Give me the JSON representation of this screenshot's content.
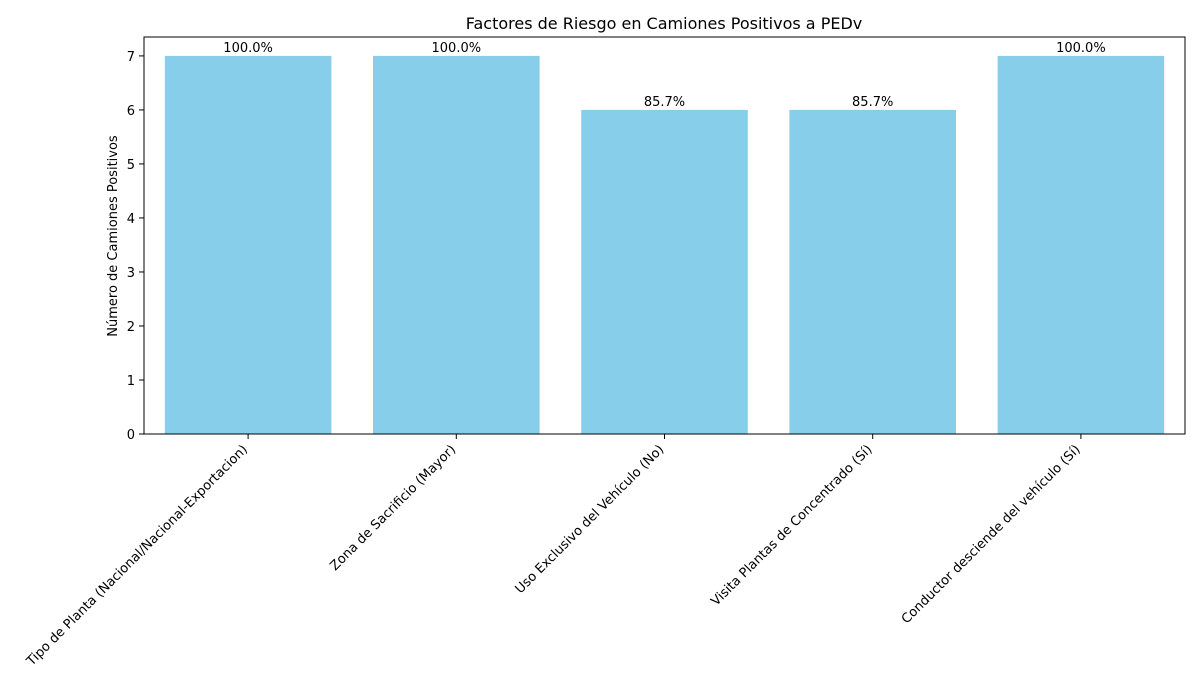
{
  "chart_data": {
    "type": "bar",
    "title": "Factores de Riesgo en Camiones Positivos a PEDv",
    "xlabel": "",
    "ylabel": "Número de Camiones Positivos",
    "categories": [
      "Tipo de Planta (Nacional/Nacional-Exportacion)",
      "Zona de Sacrificio (Mayor)",
      "Uso Exclusivo del Vehículo (No)",
      "Visita Plantas de Concentrado (Sí)",
      "Conductor desciende del vehículo (Sí)"
    ],
    "values": [
      7,
      7,
      6,
      6,
      7
    ],
    "data_labels": [
      "100.0%",
      "100.0%",
      "85.7%",
      "85.7%",
      "100.0%"
    ],
    "ylim": [
      0,
      7.35
    ],
    "yticks": [
      "0",
      "1",
      "2",
      "3",
      "4",
      "5",
      "6",
      "7"
    ],
    "bar_color": "#87ceeb",
    "grid": false,
    "legend": "none"
  }
}
